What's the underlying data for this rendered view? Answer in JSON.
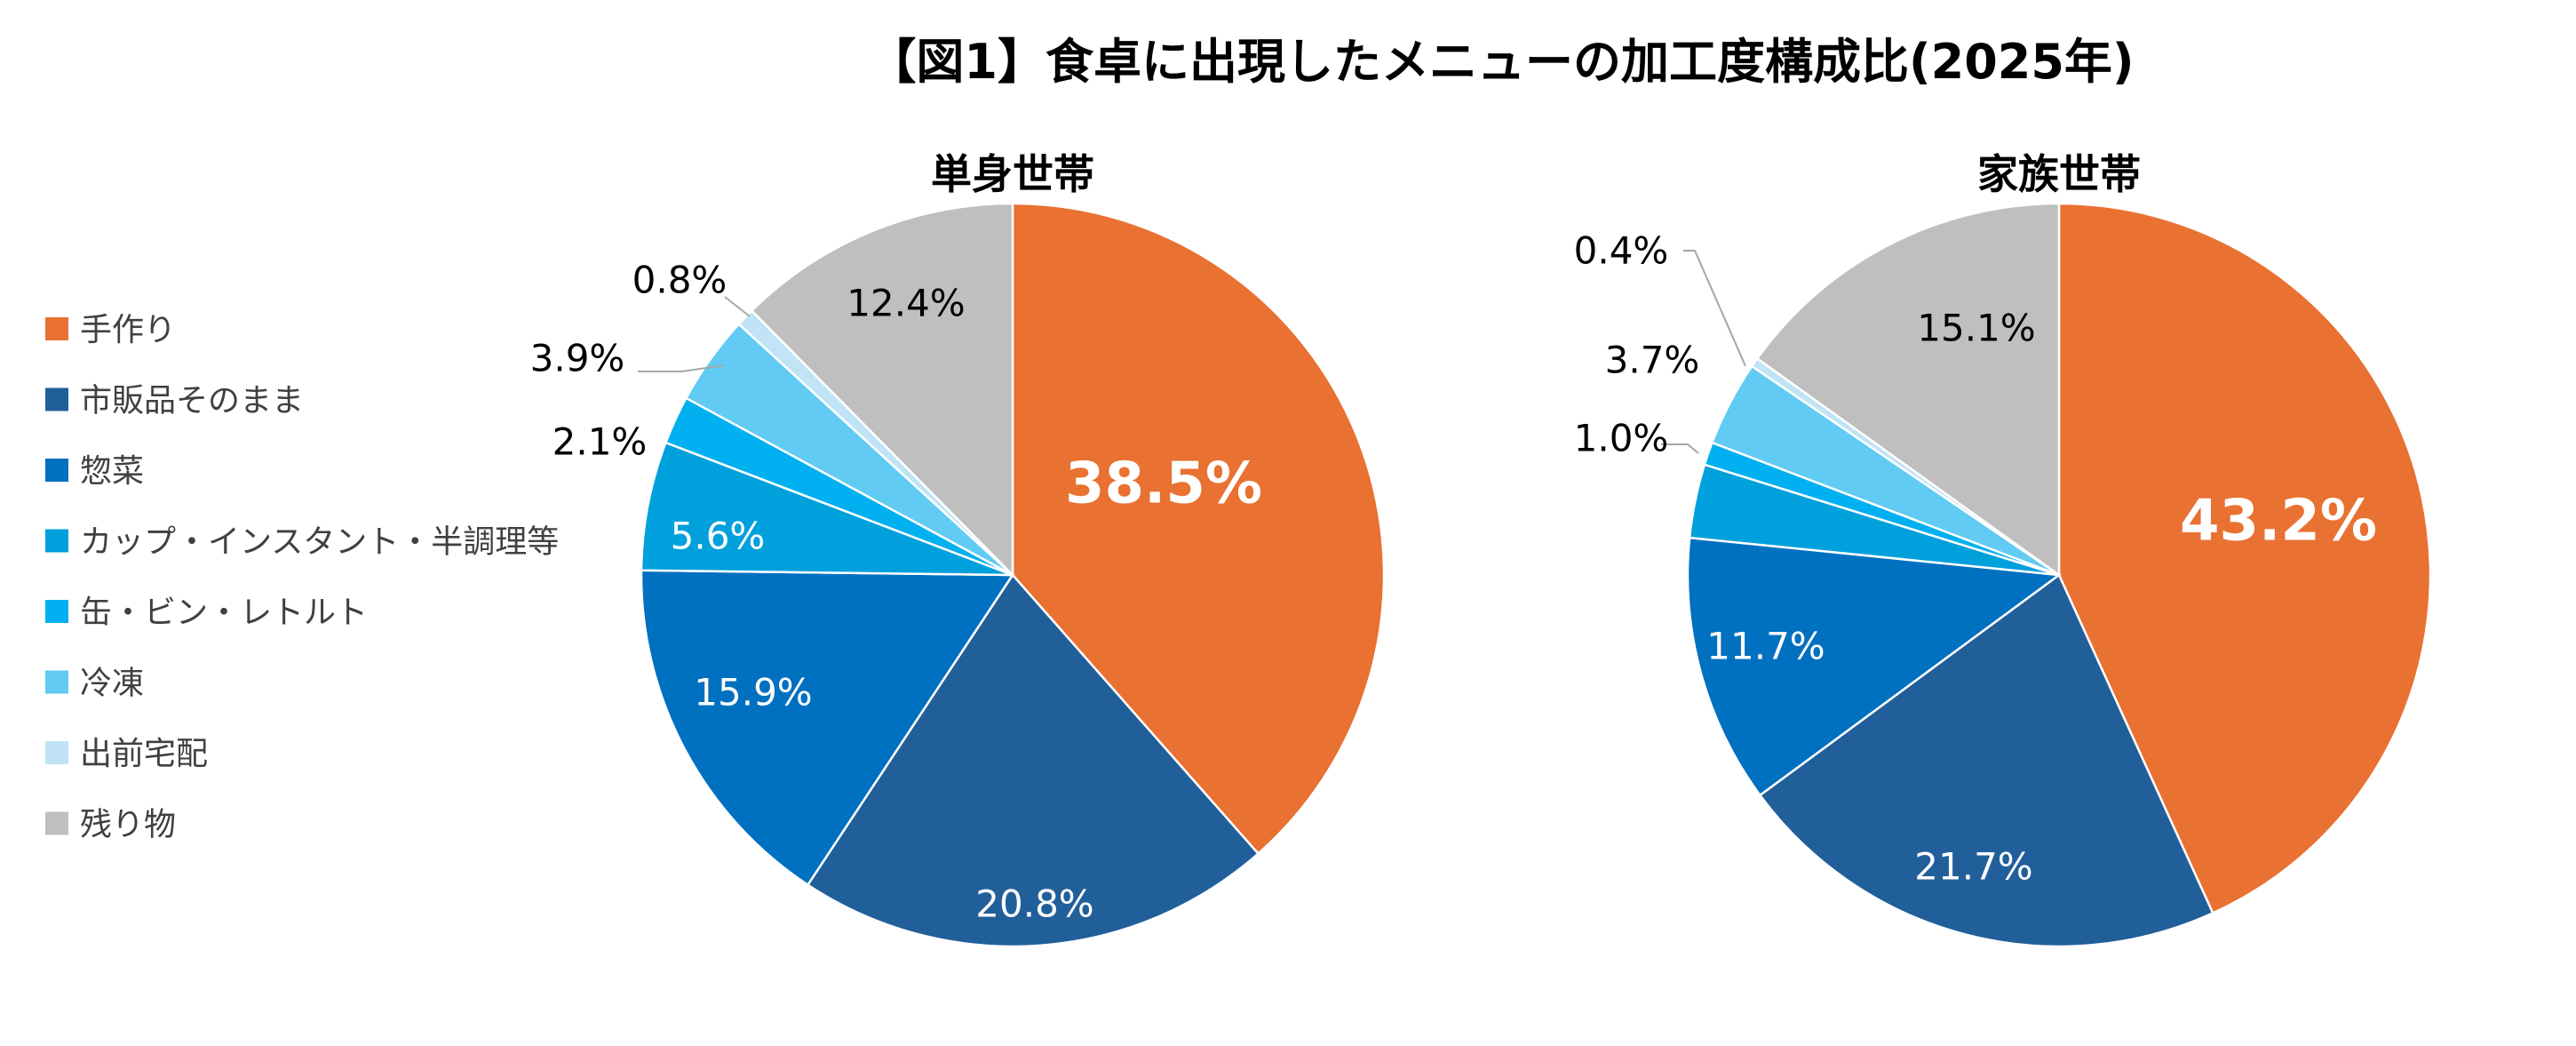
{
  "chart_data": {
    "type": "pie",
    "title": "【図1】食卓に出現したメニューの加工度構成比(2025年)",
    "categories": [
      "手作り",
      "市販品そのまま",
      "惣菜",
      "カップ・インスタント・半調理等",
      "缶・ビン・レトルト",
      "冷凍",
      "出前宅配",
      "残り物"
    ],
    "colors": [
      "#E97132",
      "#215F9A",
      "#0070C0",
      "#00A0DC",
      "#00B0F0",
      "#61CBF3",
      "#C0E4F5",
      "#BFBFBF"
    ],
    "legend_position": "left",
    "series": [
      {
        "name": "単身世帯",
        "values": [
          38.5,
          20.8,
          15.9,
          5.6,
          2.1,
          3.9,
          0.8,
          12.4
        ],
        "labels": [
          "38.5%",
          "20.8%",
          "15.9%",
          "5.6%",
          "2.1%",
          "3.9%",
          "0.8%",
          "12.4%"
        ]
      },
      {
        "name": "家族世帯",
        "values": [
          43.2,
          21.7,
          11.7,
          3.2,
          1.0,
          3.7,
          0.4,
          15.1
        ],
        "labels": [
          "43.2%",
          "21.7%",
          "11.7%",
          "",
          "1.0%",
          "3.7%",
          "0.4%",
          "15.1%"
        ]
      }
    ]
  }
}
